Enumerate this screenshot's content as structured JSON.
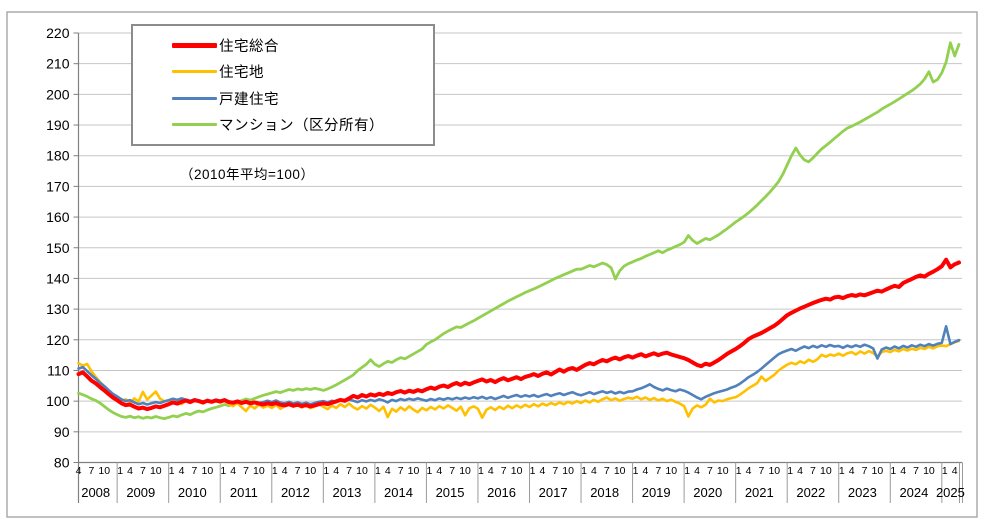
{
  "chart_data": {
    "type": "line",
    "note": "（2010年平均=100）",
    "legend_position": "top-left",
    "grid": true,
    "x": {
      "start": "2008-04",
      "end": "2025-05",
      "freq": "monthly",
      "tick_months": [
        1,
        4,
        7,
        10
      ],
      "years": [
        "2008",
        "2009",
        "2010",
        "2011",
        "2012",
        "2013",
        "2014",
        "2015",
        "2016",
        "2017",
        "2018",
        "2019",
        "2020",
        "2021",
        "2022",
        "2023",
        "2024",
        "2025"
      ]
    },
    "y": {
      "min": 80,
      "max": 220,
      "step": 10
    },
    "series": [
      {
        "id": "sogo",
        "name": "住宅総合",
        "color": "#FF0000",
        "width": 4,
        "values": [
          108.8,
          109.4,
          108.1,
          106.7,
          105.8,
          104.6,
          103.5,
          102.3,
          101.2,
          100.3,
          99.3,
          98.7,
          98.9,
          98.2,
          97.6,
          97.9,
          97.4,
          97.8,
          98.3,
          98.0,
          98.5,
          99.0,
          99.6,
          99.2,
          99.8,
          100.2,
          99.7,
          100.3,
          100.0,
          99.6,
          100.1,
          99.8,
          100.2,
          99.9,
          100.3,
          99.7,
          99.5,
          99.9,
          99.4,
          99.8,
          99.3,
          99.6,
          99.2,
          98.9,
          99.3,
          99.0,
          99.4,
          98.8,
          98.6,
          99.0,
          98.5,
          98.8,
          98.4,
          98.7,
          98.3,
          98.6,
          99.0,
          99.3,
          99.0,
          99.5,
          99.9,
          100.4,
          100.1,
          100.9,
          101.7,
          101.2,
          102.0,
          101.5,
          102.2,
          101.8,
          102.4,
          102.0,
          102.7,
          102.3,
          102.9,
          103.3,
          102.8,
          103.4,
          103.0,
          103.6,
          103.2,
          103.9,
          104.4,
          104.0,
          104.7,
          105.1,
          104.6,
          105.4,
          105.9,
          105.3,
          106.0,
          105.5,
          106.1,
          106.6,
          107.1,
          106.4,
          106.9,
          106.2,
          107.0,
          107.5,
          106.8,
          107.3,
          107.8,
          107.2,
          107.9,
          108.3,
          108.8,
          108.2,
          108.9,
          109.4,
          108.7,
          109.5,
          110.3,
          109.6,
          110.4,
          110.8,
          110.2,
          111.0,
          111.8,
          112.4,
          112.0,
          112.8,
          113.4,
          113.0,
          113.7,
          114.2,
          113.6,
          114.3,
          114.7,
          114.2,
          114.8,
          115.3,
          114.6,
          115.1,
          115.6,
          115.0,
          115.5,
          115.8,
          115.2,
          114.8,
          114.4,
          114.0,
          113.4,
          112.6,
          111.8,
          111.4,
          112.2,
          111.8,
          112.6,
          113.4,
          114.4,
          115.4,
          116.2,
          117.0,
          117.9,
          119.0,
          120.2,
          121.0,
          121.6,
          122.2,
          123.0,
          123.8,
          124.6,
          125.6,
          126.8,
          128.0,
          128.8,
          129.5,
          130.2,
          130.8,
          131.4,
          132.0,
          132.5,
          133.0,
          133.4,
          133.1,
          133.8,
          134.0,
          133.6,
          134.2,
          134.6,
          134.3,
          134.8,
          134.5,
          135.0,
          135.5,
          136.0,
          135.7,
          136.4,
          137.0,
          137.6,
          137.2,
          138.5,
          139.2,
          139.8,
          140.5,
          141.0,
          140.6,
          141.5,
          142.2,
          143.0,
          144.0,
          146.1,
          143.6,
          144.6,
          145.2
        ]
      },
      {
        "id": "takuchi",
        "name": "住宅地",
        "color": "#FFC000",
        "width": 2.6,
        "values": [
          112.4,
          111.6,
          112.1,
          109.8,
          107.9,
          106.2,
          104.8,
          103.2,
          101.9,
          101.0,
          99.8,
          100.6,
          99.5,
          100.9,
          99.9,
          103.0,
          100.5,
          101.8,
          103.1,
          100.8,
          99.9,
          100.3,
          99.4,
          100.0,
          99.0,
          100.2,
          99.5,
          100.6,
          99.8,
          99.2,
          100.4,
          99.6,
          100.1,
          99.5,
          100.3,
          99.0,
          98.4,
          99.4,
          98.0,
          96.8,
          98.6,
          97.6,
          98.9,
          97.9,
          98.5,
          97.8,
          98.8,
          97.5,
          98.4,
          99.3,
          98.2,
          99.0,
          97.9,
          98.6,
          97.7,
          98.3,
          99.0,
          98.2,
          97.4,
          98.5,
          97.8,
          99.0,
          98.1,
          99.2,
          98.0,
          97.3,
          98.4,
          97.6,
          98.8,
          97.9,
          96.8,
          98.2,
          94.8,
          97.5,
          96.6,
          98.0,
          97.0,
          98.3,
          97.2,
          96.4,
          97.8,
          97.0,
          98.1,
          97.3,
          98.4,
          97.6,
          98.6,
          97.8,
          96.9,
          98.2,
          95.4,
          97.7,
          98.3,
          97.5,
          94.6,
          97.2,
          98.0,
          97.1,
          98.2,
          97.4,
          98.5,
          97.7,
          98.6,
          97.9,
          98.8,
          98.1,
          99.0,
          98.3,
          99.2,
          98.6,
          99.4,
          98.8,
          99.6,
          99.0,
          99.8,
          99.2,
          100.0,
          99.4,
          100.2,
          99.6,
          100.4,
          99.8,
          100.6,
          101.2,
          100.3,
          100.9,
          100.1,
          100.7,
          101.1,
          100.8,
          101.4,
          100.6,
          101.2,
          100.4,
          101.0,
          100.2,
          100.8,
          100.0,
          100.5,
          99.8,
          99.2,
          98.4,
          95.0,
          97.6,
          98.6,
          98.0,
          98.8,
          100.8,
          99.6,
          100.2,
          100.0,
          100.6,
          101.0,
          101.3,
          102.1,
          103.1,
          104.2,
          105.0,
          105.8,
          108.0,
          106.6,
          107.6,
          108.6,
          110.0,
          111.0,
          111.9,
          112.5,
          112.0,
          113.0,
          112.4,
          113.5,
          112.8,
          113.6,
          115.1,
          114.5,
          115.2,
          114.8,
          115.5,
          114.8,
          115.6,
          116.0,
          115.2,
          116.2,
          115.5,
          116.3,
          115.7,
          114.5,
          116.0,
          116.4,
          116.0,
          116.7,
          116.2,
          117.0,
          116.5,
          117.1,
          116.7,
          117.4,
          117.0,
          117.7,
          117.2,
          117.9,
          118.1,
          117.9,
          118.6,
          119.2,
          119.6
        ]
      },
      {
        "id": "kodate",
        "name": "戸建住宅",
        "color": "#4F81BD",
        "width": 2.6,
        "values": [
          110.6,
          111.1,
          109.8,
          108.5,
          107.3,
          106.0,
          104.9,
          103.6,
          102.4,
          101.5,
          100.6,
          100.0,
          100.3,
          99.6,
          99.0,
          99.4,
          98.9,
          99.3,
          99.7,
          99.4,
          99.9,
          100.3,
          100.8,
          100.4,
          100.9,
          100.5,
          100.1,
          100.6,
          100.2,
          99.8,
          100.4,
          100.0,
          100.5,
          100.1,
          100.6,
          99.9,
          99.6,
          100.1,
          99.5,
          99.9,
          99.4,
          99.8,
          99.3,
          99.7,
          100.1,
          99.7,
          100.2,
          99.5,
          99.3,
          99.8,
          99.2,
          99.6,
          99.1,
          99.5,
          99.0,
          99.4,
          99.8,
          100.0,
          99.6,
          100.1,
          99.7,
          100.3,
          99.9,
          100.5,
          100.1,
          99.7,
          100.3,
          99.9,
          100.4,
          100.0,
          100.6,
          100.2,
          99.6,
          100.4,
          100.0,
          100.7,
          100.3,
          100.8,
          100.4,
          100.9,
          100.5,
          100.1,
          100.7,
          100.3,
          100.9,
          100.5,
          101.0,
          100.6,
          101.1,
          100.7,
          101.2,
          100.8,
          101.3,
          100.9,
          101.4,
          100.8,
          101.3,
          100.7,
          101.2,
          101.7,
          101.1,
          101.6,
          102.0,
          101.4,
          101.9,
          101.5,
          102.0,
          101.4,
          101.9,
          102.3,
          101.7,
          102.2,
          102.6,
          102.0,
          102.5,
          102.9,
          102.3,
          101.9,
          102.4,
          102.9,
          102.3,
          102.8,
          103.2,
          102.7,
          103.1,
          102.5,
          103.0,
          102.6,
          103.1,
          103.2,
          103.8,
          104.2,
          104.8,
          105.5,
          104.6,
          104.0,
          103.5,
          104.1,
          103.6,
          103.2,
          103.8,
          103.4,
          102.8,
          102.0,
          101.2,
          100.6,
          101.4,
          102.0,
          102.6,
          103.0,
          103.4,
          103.8,
          104.4,
          104.9,
          105.7,
          106.7,
          107.8,
          108.6,
          109.5,
          110.6,
          111.8,
          113.0,
          114.2,
          115.3,
          116.0,
          116.5,
          117.0,
          116.4,
          117.2,
          117.8,
          117.3,
          118.0,
          117.5,
          118.2,
          117.7,
          118.3,
          117.8,
          118.0,
          117.4,
          118.1,
          117.6,
          118.2,
          117.7,
          118.4,
          117.9,
          117.2,
          113.9,
          116.8,
          117.5,
          117.0,
          117.8,
          117.2,
          118.0,
          117.5,
          118.2,
          117.7,
          118.4,
          117.9,
          118.6,
          118.1,
          118.7,
          119.0,
          124.4,
          118.6,
          119.3,
          119.9
        ]
      },
      {
        "id": "mansion",
        "name": "マンション（区分所有）",
        "color": "#92D050",
        "width": 2.8,
        "values": [
          102.6,
          102.1,
          101.5,
          100.8,
          100.2,
          99.4,
          98.3,
          97.2,
          96.3,
          95.6,
          95.0,
          94.7,
          95.1,
          94.6,
          94.9,
          94.4,
          94.8,
          94.5,
          95.0,
          94.6,
          94.3,
          94.7,
          95.2,
          94.9,
          95.5,
          96.0,
          95.6,
          96.3,
          96.8,
          96.5,
          97.1,
          97.6,
          98.0,
          98.4,
          98.9,
          98.5,
          99.2,
          99.7,
          100.2,
          100.7,
          100.3,
          100.9,
          101.4,
          101.9,
          102.3,
          102.7,
          103.1,
          102.8,
          103.3,
          103.8,
          103.5,
          104.0,
          103.7,
          104.1,
          103.8,
          104.2,
          103.9,
          103.5,
          104.0,
          104.6,
          105.3,
          106.1,
          106.9,
          107.7,
          108.6,
          110.0,
          111.0,
          112.0,
          113.5,
          112.0,
          111.3,
          112.2,
          113.0,
          112.6,
          113.5,
          114.2,
          113.8,
          114.6,
          115.4,
          116.2,
          117.0,
          118.5,
          119.3,
          120.0,
          121.0,
          122.0,
          122.8,
          123.5,
          124.2,
          124.0,
          124.8,
          125.5,
          126.2,
          127.0,
          127.8,
          128.6,
          129.4,
          130.2,
          131.0,
          131.8,
          132.6,
          133.3,
          134.0,
          134.7,
          135.4,
          136.0,
          136.6,
          137.2,
          137.9,
          138.6,
          139.3,
          140.0,
          140.6,
          141.2,
          141.8,
          142.4,
          143.0,
          143.0,
          143.6,
          144.2,
          143.8,
          144.4,
          145.0,
          144.5,
          143.5,
          139.8,
          142.5,
          144.0,
          144.8,
          145.4,
          146.0,
          146.5,
          147.2,
          147.8,
          148.4,
          149.0,
          148.4,
          149.2,
          149.8,
          150.4,
          151.0,
          151.8,
          154.0,
          152.4,
          151.4,
          152.2,
          153.0,
          152.6,
          153.4,
          154.2,
          155.2,
          156.2,
          157.3,
          158.4,
          159.3,
          160.3,
          161.4,
          162.6,
          163.9,
          165.3,
          166.7,
          168.2,
          169.8,
          171.6,
          174.0,
          177.0,
          180.0,
          182.5,
          180.2,
          178.6,
          178.0,
          179.3,
          180.8,
          182.2,
          183.3,
          184.4,
          185.6,
          186.8,
          188.0,
          189.0,
          189.6,
          190.3,
          191.0,
          191.8,
          192.6,
          193.4,
          194.2,
          195.2,
          196.0,
          196.8,
          197.6,
          198.5,
          199.4,
          200.3,
          201.2,
          202.2,
          203.4,
          205.0,
          207.4,
          204.0,
          204.8,
          207.0,
          210.5,
          216.8,
          212.5,
          216.3
        ]
      }
    ]
  }
}
